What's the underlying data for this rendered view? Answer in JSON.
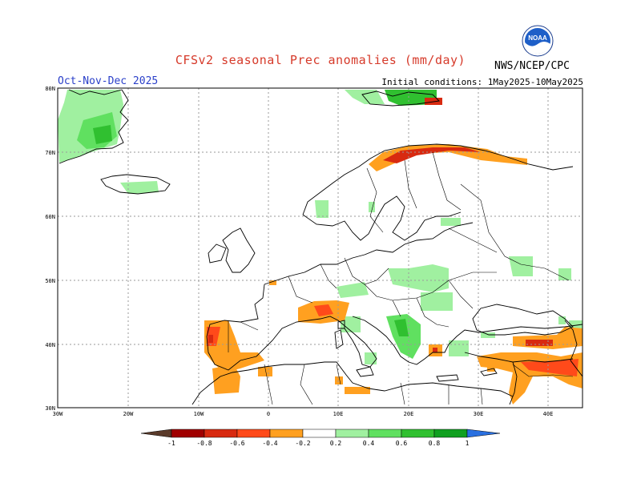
{
  "title": "CFSv2 seasonal Prec anomalies (mm/day)",
  "period": "Oct-Nov-Dec 2025",
  "initial_conditions": "Initial conditions: 1May2025-10May2025",
  "agency": "NWS/NCEP/CPC",
  "logo": {
    "icon": "noaa-logo-icon",
    "text": "NOAA"
  },
  "map": {
    "lat_labels": [
      "80N",
      "70N",
      "60N",
      "50N",
      "40N",
      "30N"
    ],
    "lon_labels": [
      "30W",
      "20W",
      "10W",
      "0",
      "10E",
      "20E",
      "30E",
      "40E"
    ]
  },
  "colorbar": {
    "labels": [
      "-1",
      "-0.8",
      "-0.6",
      "-0.4",
      "-0.2",
      "0.2",
      "0.4",
      "0.6",
      "0.8",
      "1"
    ],
    "colors": {
      "lt_-1": "#5a3a2a",
      "-1_-0.8": "#a00000",
      "-0.8_-0.6": "#d82a10",
      "-0.6_-0.4": "#ff4a1a",
      "-0.4_-0.2": "#ffa020",
      "-0.2_0.2": "#ffffff",
      "0.2_0.4": "#a0f0a0",
      "0.4_0.6": "#60e060",
      "0.6_0.8": "#30c030",
      "0.8_1": "#10a020",
      "gt_1": "#2a70e0"
    }
  }
}
